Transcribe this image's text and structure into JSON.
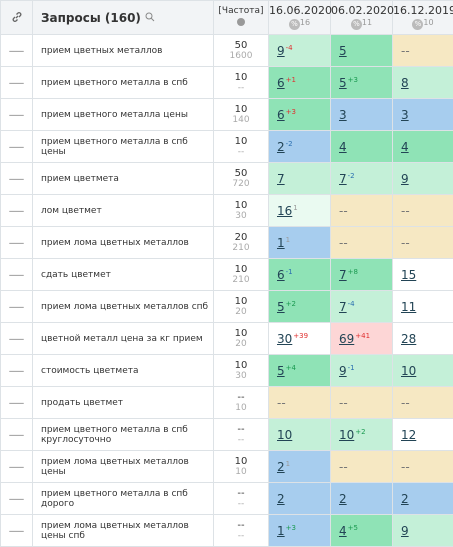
{
  "header": {
    "query_title": "Запросы (160)",
    "freq_title": "[Частота]",
    "percent_icon": "%",
    "dates": [
      {
        "date": "16.06.2020",
        "count": "16"
      },
      {
        "date": "06.02.2020",
        "count": "11"
      },
      {
        "date": "16.12.2019",
        "count": "10"
      }
    ]
  },
  "rows": [
    {
      "query": "прием цветных металлов",
      "freq": [
        "50",
        "1600"
      ],
      "cells": [
        {
          "pos": "9",
          "change": "-4",
          "tone": "red",
          "bg": "light"
        },
        {
          "pos": "5",
          "bg": "green"
        },
        {
          "pos": "--",
          "bg": "beige"
        }
      ]
    },
    {
      "query": "прием цветного металла в спб",
      "freq": [
        "10",
        "--"
      ],
      "cells": [
        {
          "pos": "6",
          "change": "+1",
          "tone": "red",
          "bg": "green"
        },
        {
          "pos": "5",
          "change": "+3",
          "tone": "green",
          "bg": "green"
        },
        {
          "pos": "8",
          "bg": "light"
        }
      ]
    },
    {
      "query": "прием цветного металла цены",
      "freq": [
        "10",
        "140"
      ],
      "cells": [
        {
          "pos": "6",
          "change": "+3",
          "tone": "red",
          "bg": "green"
        },
        {
          "pos": "3",
          "bg": "blue"
        },
        {
          "pos": "3",
          "bg": "blue"
        }
      ]
    },
    {
      "query": "прием цветного металла в спб цены",
      "freq": [
        "10",
        "--"
      ],
      "cells": [
        {
          "pos": "2",
          "change": "-2",
          "tone": "blue",
          "bg": "blue"
        },
        {
          "pos": "4",
          "bg": "green"
        },
        {
          "pos": "4",
          "bg": "green"
        }
      ]
    },
    {
      "query": "прием цветмета",
      "freq": [
        "50",
        "720"
      ],
      "cells": [
        {
          "pos": "7",
          "bg": "light"
        },
        {
          "pos": "7",
          "change": "-2",
          "tone": "blue",
          "bg": "light"
        },
        {
          "pos": "9",
          "bg": "light"
        }
      ]
    },
    {
      "query": "лом цветмет",
      "freq": [
        "10",
        "30"
      ],
      "cells": [
        {
          "pos": "16",
          "change": "1",
          "tone": "gray",
          "bg": "pale"
        },
        {
          "pos": "--",
          "bg": "beige"
        },
        {
          "pos": "--",
          "bg": "beige"
        }
      ]
    },
    {
      "query": "прием лома цветных металлов",
      "freq": [
        "20",
        "210"
      ],
      "cells": [
        {
          "pos": "1",
          "change": "1",
          "tone": "gray",
          "bg": "blue"
        },
        {
          "pos": "--",
          "bg": "beige"
        },
        {
          "pos": "--",
          "bg": "beige"
        }
      ]
    },
    {
      "query": "сдать цветмет",
      "freq": [
        "10",
        "210"
      ],
      "cells": [
        {
          "pos": "6",
          "change": "-1",
          "tone": "blue",
          "bg": "green"
        },
        {
          "pos": "7",
          "change": "+8",
          "tone": "green",
          "bg": "green"
        },
        {
          "pos": "15",
          "bg": "white"
        }
      ]
    },
    {
      "query": "прием лома цветных металлов спб",
      "freq": [
        "10",
        "20"
      ],
      "cells": [
        {
          "pos": "5",
          "change": "+2",
          "tone": "green",
          "bg": "green"
        },
        {
          "pos": "7",
          "change": "-4",
          "tone": "blue",
          "bg": "light"
        },
        {
          "pos": "11",
          "bg": "white"
        }
      ]
    },
    {
      "query": "цветной металл цена за кг прием",
      "freq": [
        "10",
        "20"
      ],
      "cells": [
        {
          "pos": "30",
          "change": "+39",
          "tone": "red",
          "bg": "white"
        },
        {
          "pos": "69",
          "change": "+41",
          "tone": "red",
          "bg": "pink"
        },
        {
          "pos": "28",
          "bg": "white"
        }
      ]
    },
    {
      "query": "стоимость цветмета",
      "freq": [
        "10",
        "30"
      ],
      "cells": [
        {
          "pos": "5",
          "change": "+4",
          "tone": "green",
          "bg": "green"
        },
        {
          "pos": "9",
          "change": "-1",
          "tone": "blue",
          "bg": "light"
        },
        {
          "pos": "10",
          "bg": "light"
        }
      ]
    },
    {
      "query": "продать цветмет",
      "freq": [
        "--",
        "10"
      ],
      "cells": [
        {
          "pos": "--",
          "bg": "beige"
        },
        {
          "pos": "--",
          "bg": "beige"
        },
        {
          "pos": "--",
          "bg": "beige"
        }
      ]
    },
    {
      "query": "прием цветного металла в спб круглосуточно",
      "freq": [
        "--",
        "--"
      ],
      "cells": [
        {
          "pos": "10",
          "bg": "light"
        },
        {
          "pos": "10",
          "change": "+2",
          "tone": "green",
          "bg": "light"
        },
        {
          "pos": "12",
          "bg": "white"
        }
      ]
    },
    {
      "query": "прием лома цветных металлов цены",
      "freq": [
        "10",
        "10"
      ],
      "cells": [
        {
          "pos": "2",
          "change": "1",
          "tone": "gray",
          "bg": "blue"
        },
        {
          "pos": "--",
          "bg": "beige"
        },
        {
          "pos": "--",
          "bg": "beige"
        }
      ]
    },
    {
      "query": "прием цветного металла в спб дорого",
      "freq": [
        "--",
        "--"
      ],
      "cells": [
        {
          "pos": "2",
          "bg": "blue"
        },
        {
          "pos": "2",
          "bg": "blue"
        },
        {
          "pos": "2",
          "bg": "blue"
        }
      ]
    },
    {
      "query": "прием лома цветных металлов цены спб",
      "freq": [
        "--",
        "--"
      ],
      "cells": [
        {
          "pos": "1",
          "change": "+3",
          "tone": "green",
          "bg": "blue"
        },
        {
          "pos": "4",
          "change": "+5",
          "tone": "green",
          "bg": "green"
        },
        {
          "pos": "9",
          "bg": "light"
        }
      ]
    }
  ]
}
